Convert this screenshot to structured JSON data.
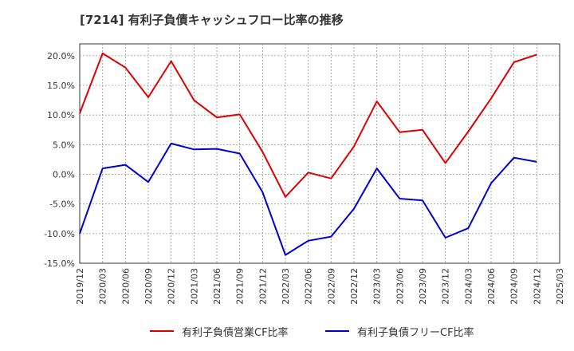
{
  "chart_data": {
    "type": "line",
    "title": "[7214]  有利子負債キャッシュフロー比率の推移",
    "x": [
      "2019/12",
      "2020/03",
      "2020/06",
      "2020/09",
      "2020/12",
      "2021/03",
      "2021/06",
      "2021/09",
      "2021/12",
      "2022/03",
      "2022/06",
      "2022/09",
      "2022/12",
      "2023/03",
      "2023/06",
      "2023/09",
      "2023/12",
      "2024/03",
      "2024/06",
      "2024/09",
      "2024/12",
      "2025/03"
    ],
    "ylim": [
      -15,
      22
    ],
    "yticks": [
      -15,
      -10,
      -5,
      0,
      5,
      10,
      15,
      20
    ],
    "ytick_labels": [
      "-15.0%",
      "-10.0%",
      "-5.0%",
      "0.0%",
      "5.0%",
      "10.0%",
      "15.0%",
      "20.0%"
    ],
    "grid": true,
    "legend_position": "bottom",
    "series": [
      {
        "name": "有利子負債営業CF比率",
        "color": "#dd0000",
        "values": [
          10.3,
          20.4,
          18.0,
          13.0,
          19.1,
          12.5,
          9.6,
          10.1,
          3.8,
          -3.8,
          0.3,
          -0.7,
          4.7,
          12.3,
          7.1,
          7.5,
          1.9,
          7.2,
          12.8,
          18.9,
          20.2,
          null
        ]
      },
      {
        "name": "有利子負債フリーCF比率",
        "color": "#0000cc",
        "values": [
          -10.0,
          1.0,
          1.6,
          -1.3,
          5.2,
          4.2,
          4.3,
          3.5,
          -3.0,
          -13.6,
          -11.2,
          -10.5,
          -5.8,
          1.0,
          -4.1,
          -4.4,
          -10.7,
          -9.1,
          -1.5,
          2.8,
          2.1,
          null
        ]
      }
    ]
  }
}
